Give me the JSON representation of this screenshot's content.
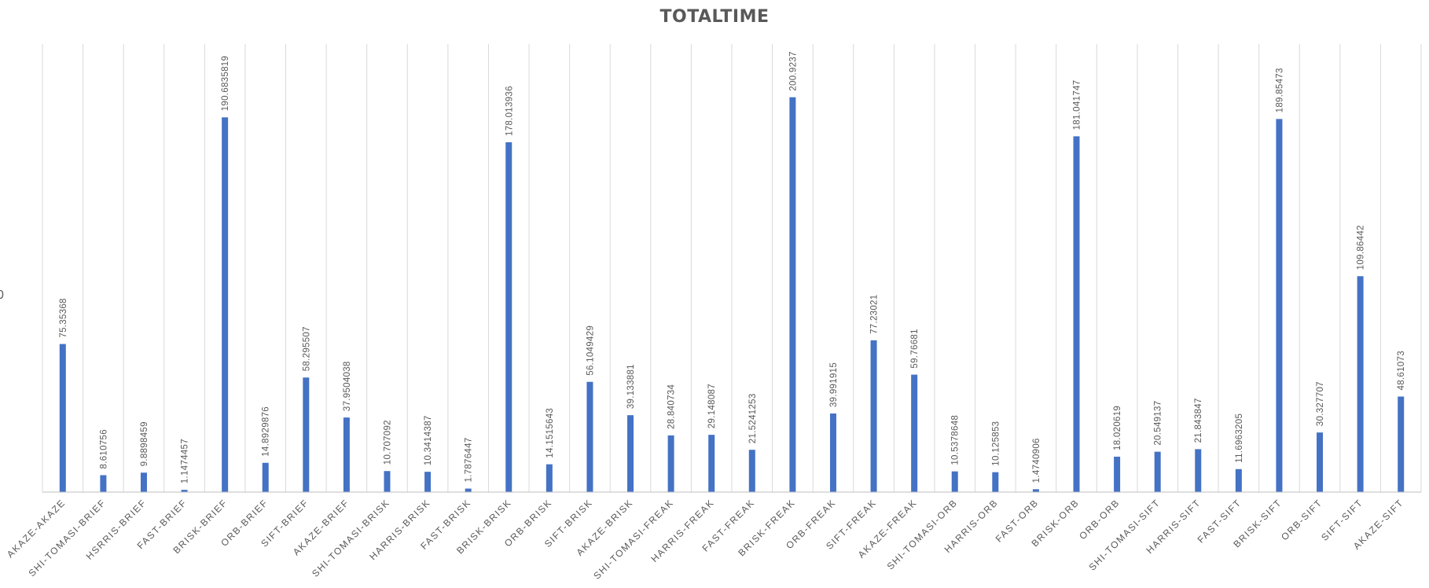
{
  "chart_data": {
    "type": "bar",
    "title": "TOTALTIME",
    "xlabel": "",
    "ylabel": "",
    "ylim": [
      0,
      228
    ],
    "grid": "vertical",
    "legend": "none",
    "bar_color": "#4472c4",
    "categories": [
      "AKAZE-AKAZE",
      "SHI-TOMASI-BRIEF",
      "HSRRIS-BRIEF",
      "FAST-BRIEF",
      "BRISK-BRIEF",
      "ORB-BRIEF",
      "SIFT-BRIEF",
      "AKAZE-BRIEF",
      "SHI-TOMASI-BRISK",
      "HARRIS-BRISK",
      "FAST-BRISK",
      "BRISK-BRISK",
      "ORB-BRISK",
      "SIFT-BRISK",
      "AKAZE-BRISK",
      "SHI-TOMASI-FREAK",
      "HARRIS-FREAK",
      "FAST-FREAK",
      "BRISK-FREAK",
      "ORB-FREAK",
      "SIFT-FREAK",
      "AKAZE-FREAK",
      "SHI-TOMASI-ORB",
      "HARRIS-ORB",
      "FAST-ORB",
      "BRISK-ORB",
      "ORB-ORB",
      "SHI-TOMASI-SIFT",
      "HARRIS-SIFT",
      "FAST-SIFT",
      "BRISK-SIFT",
      "ORB-SIFT",
      "SIFT-SIFT",
      "AKAZE-SIFT"
    ],
    "values": [
      75.35368,
      8.610756,
      9.8898459,
      1.1474457,
      190.6835819,
      14.8929876,
      58.295507,
      37.9504038,
      10.707092,
      10.3414387,
      1.7876447,
      178.013936,
      14.1515643,
      56.1049429,
      39.133881,
      28.840734,
      29.148087,
      21.5241253,
      200.9237,
      39.991915,
      77.23021,
      59.76681,
      10.5378648,
      10.125853,
      1.4740906,
      181.041747,
      18.020619,
      20.549137,
      21.843847,
      11.6963205,
      189.85473,
      30.327707,
      109.86442,
      48.61073
    ],
    "data_labels": [
      "75.35368",
      "8.610756",
      "9.8898459",
      "1.1474457",
      "190.6835819",
      "14.8929876",
      "58.295507",
      "37.9504038",
      "10.707092",
      "10.3414387",
      "1.7876447",
      "178.013936",
      "14.1515643",
      "56.1049429",
      "39.133881",
      "28.840734",
      "29.148087",
      "21.5241253",
      "200.9237",
      "39.991915",
      "77.23021",
      "59.76681",
      "10.5378648",
      "10.125853",
      "1.4740906",
      "181.041747",
      "18.020619",
      "20.549137",
      "21.843847",
      "11.6963205",
      "189.85473",
      "30.327707",
      "109.86442",
      "48.61073"
    ],
    "axis_glyph": "0"
  }
}
